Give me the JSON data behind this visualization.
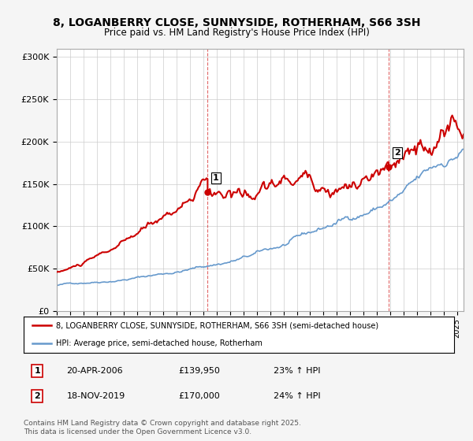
{
  "title": "8, LOGANBERRY CLOSE, SUNNYSIDE, ROTHERHAM, S66 3SH",
  "subtitle": "Price paid vs. HM Land Registry's House Price Index (HPI)",
  "ylim": [
    0,
    310000
  ],
  "yticks": [
    0,
    50000,
    100000,
    150000,
    200000,
    250000,
    300000
  ],
  "red_color": "#cc0000",
  "blue_color": "#6699cc",
  "background_color": "#f5f5f5",
  "plot_bg_color": "#ffffff",
  "grid_color": "#cccccc",
  "legend_label_red": "8, LOGANBERRY CLOSE, SUNNYSIDE, ROTHERHAM, S66 3SH (semi-detached house)",
  "legend_label_blue": "HPI: Average price, semi-detached house, Rotherham",
  "marker1_x": 2006.31,
  "marker1_y": 139950,
  "marker1_label": "1",
  "marker2_x": 2019.89,
  "marker2_y": 170000,
  "marker2_label": "2",
  "footer": "Contains HM Land Registry data © Crown copyright and database right 2025.\nThis data is licensed under the Open Government Licence v3.0.",
  "xmin": 1995,
  "xmax": 2025.5,
  "ann_rows": [
    [
      "1",
      "20-APR-2006",
      "£139,950",
      "23% ↑ HPI"
    ],
    [
      "2",
      "18-NOV-2019",
      "£170,000",
      "24% ↑ HPI"
    ]
  ]
}
